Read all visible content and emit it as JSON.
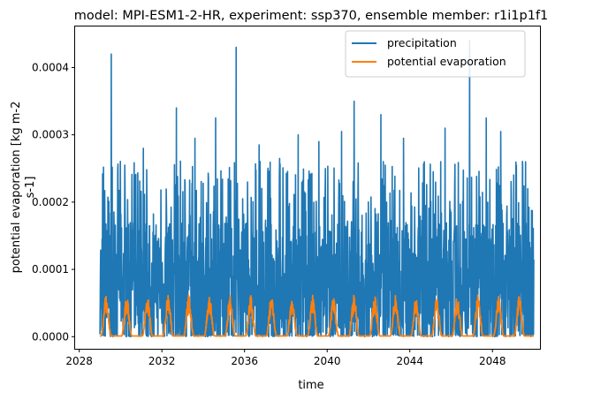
{
  "chart_data": {
    "type": "line",
    "title": "model: MPI-ESM1-2-HR, experiment: ssp370, ensemble member: r1i1p1f1",
    "xlabel": "time",
    "ylabel_lines": [
      "potential evaporation [kg m-2",
      "s-1]"
    ],
    "x_ticks": [
      "2028",
      "2032",
      "2036",
      "2040",
      "2044",
      "2048"
    ],
    "y_ticks": [
      "0.0000",
      "0.0001",
      "0.0002",
      "0.0003",
      "0.0004"
    ],
    "xlim": [
      2027.8,
      2050.3
    ],
    "ylim": [
      -1.8e-05,
      0.000461
    ],
    "x_range_data": [
      2029.0,
      2050.0
    ],
    "legend_position": "top-right",
    "grid": false,
    "series": [
      {
        "name": "precipitation",
        "color": "#1f77b4",
        "baseline_max": 0.00018,
        "peaks": [
          {
            "x": 2029.1,
            "y": 0.000145
          },
          {
            "x": 2029.55,
            "y": 0.00042
          },
          {
            "x": 2030.2,
            "y": 0.000255
          },
          {
            "x": 2031.1,
            "y": 0.00028
          },
          {
            "x": 2032.7,
            "y": 0.00034
          },
          {
            "x": 2033.6,
            "y": 0.000295
          },
          {
            "x": 2034.6,
            "y": 0.000325
          },
          {
            "x": 2035.6,
            "y": 0.00043
          },
          {
            "x": 2036.7,
            "y": 0.000285
          },
          {
            "x": 2037.7,
            "y": 0.000265
          },
          {
            "x": 2038.6,
            "y": 0.0003
          },
          {
            "x": 2039.6,
            "y": 0.00029
          },
          {
            "x": 2040.7,
            "y": 0.000305
          },
          {
            "x": 2041.3,
            "y": 0.00035
          },
          {
            "x": 2042.6,
            "y": 0.00033
          },
          {
            "x": 2043.7,
            "y": 0.000295
          },
          {
            "x": 2044.7,
            "y": 0.00026
          },
          {
            "x": 2045.7,
            "y": 0.00031
          },
          {
            "x": 2046.9,
            "y": 0.00044
          },
          {
            "x": 2047.7,
            "y": 0.000325
          },
          {
            "x": 2048.4,
            "y": 0.000305
          },
          {
            "x": 2049.6,
            "y": 0.00026
          }
        ]
      },
      {
        "name": "potential evaporation",
        "color": "#ff7f0e",
        "seasonal_peak": 6.2e-05,
        "seasonal_min": 1e-06
      }
    ]
  }
}
